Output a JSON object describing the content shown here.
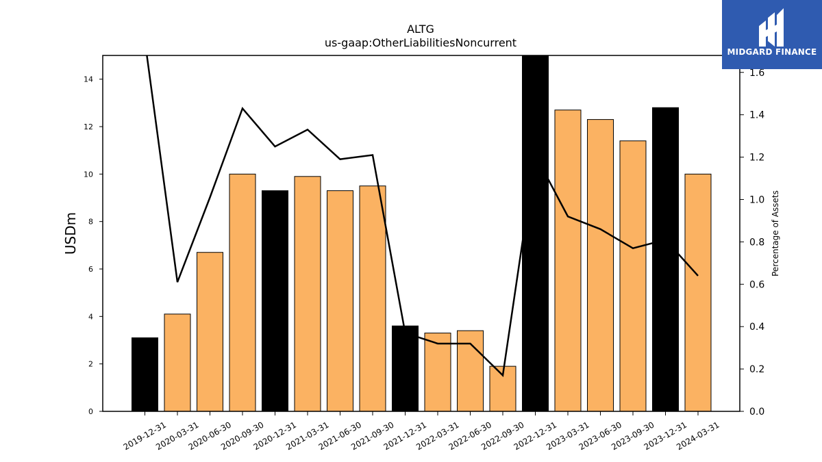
{
  "chart_data": {
    "type": "bar",
    "title": "ALTG",
    "subtitle": "us-gaap:OtherLiabilitiesNoncurrent",
    "ylabel": "USDm",
    "y2label": "Percentage of Assets",
    "ylim": [
      0,
      15
    ],
    "y2lim": [
      0,
      1.68
    ],
    "yticks": [
      "0",
      "2",
      "4",
      "6",
      "8",
      "10",
      "12",
      "14"
    ],
    "y2ticks": [
      "0.0",
      "0.2",
      "0.4",
      "0.6",
      "0.8",
      "1.0",
      "1.2",
      "1.4",
      "1.6"
    ],
    "categories": [
      "2019-12-31",
      "2020-03-31",
      "2020-06-30",
      "2020-09-30",
      "2020-12-31",
      "2021-03-31",
      "2021-06-30",
      "2021-09-30",
      "2021-12-31",
      "2022-03-31",
      "2022-06-30",
      "2022-09-30",
      "2022-12-31",
      "2023-03-31",
      "2023-06-30",
      "2023-09-30",
      "2023-12-31",
      "2024-03-31"
    ],
    "series": [
      {
        "type": "bar",
        "axis": "left",
        "values": [
          3.1,
          4.1,
          6.7,
          10.0,
          9.3,
          9.9,
          9.3,
          9.5,
          3.6,
          3.3,
          3.4,
          1.9,
          15.0,
          12.7,
          12.3,
          11.4,
          12.8,
          10.0
        ],
        "colors": [
          "#000000",
          "#fbb262",
          "#fbb262",
          "#fbb262",
          "#000000",
          "#fbb262",
          "#fbb262",
          "#fbb262",
          "#000000",
          "#fbb262",
          "#fbb262",
          "#fbb262",
          "#000000",
          "#fbb262",
          "#fbb262",
          "#fbb262",
          "#000000",
          "#fbb262"
        ]
      },
      {
        "type": "line",
        "axis": "right",
        "color": "#000000",
        "values": [
          1.75,
          0.61,
          1.01,
          1.43,
          1.25,
          1.33,
          1.19,
          1.21,
          0.37,
          0.32,
          0.32,
          0.17,
          1.21,
          0.92,
          0.86,
          0.77,
          0.81,
          0.64
        ]
      }
    ],
    "grid": false,
    "legend": "none"
  },
  "logo": {
    "text": "MIDGARD FINANCE",
    "background": "#2f5bb0"
  }
}
